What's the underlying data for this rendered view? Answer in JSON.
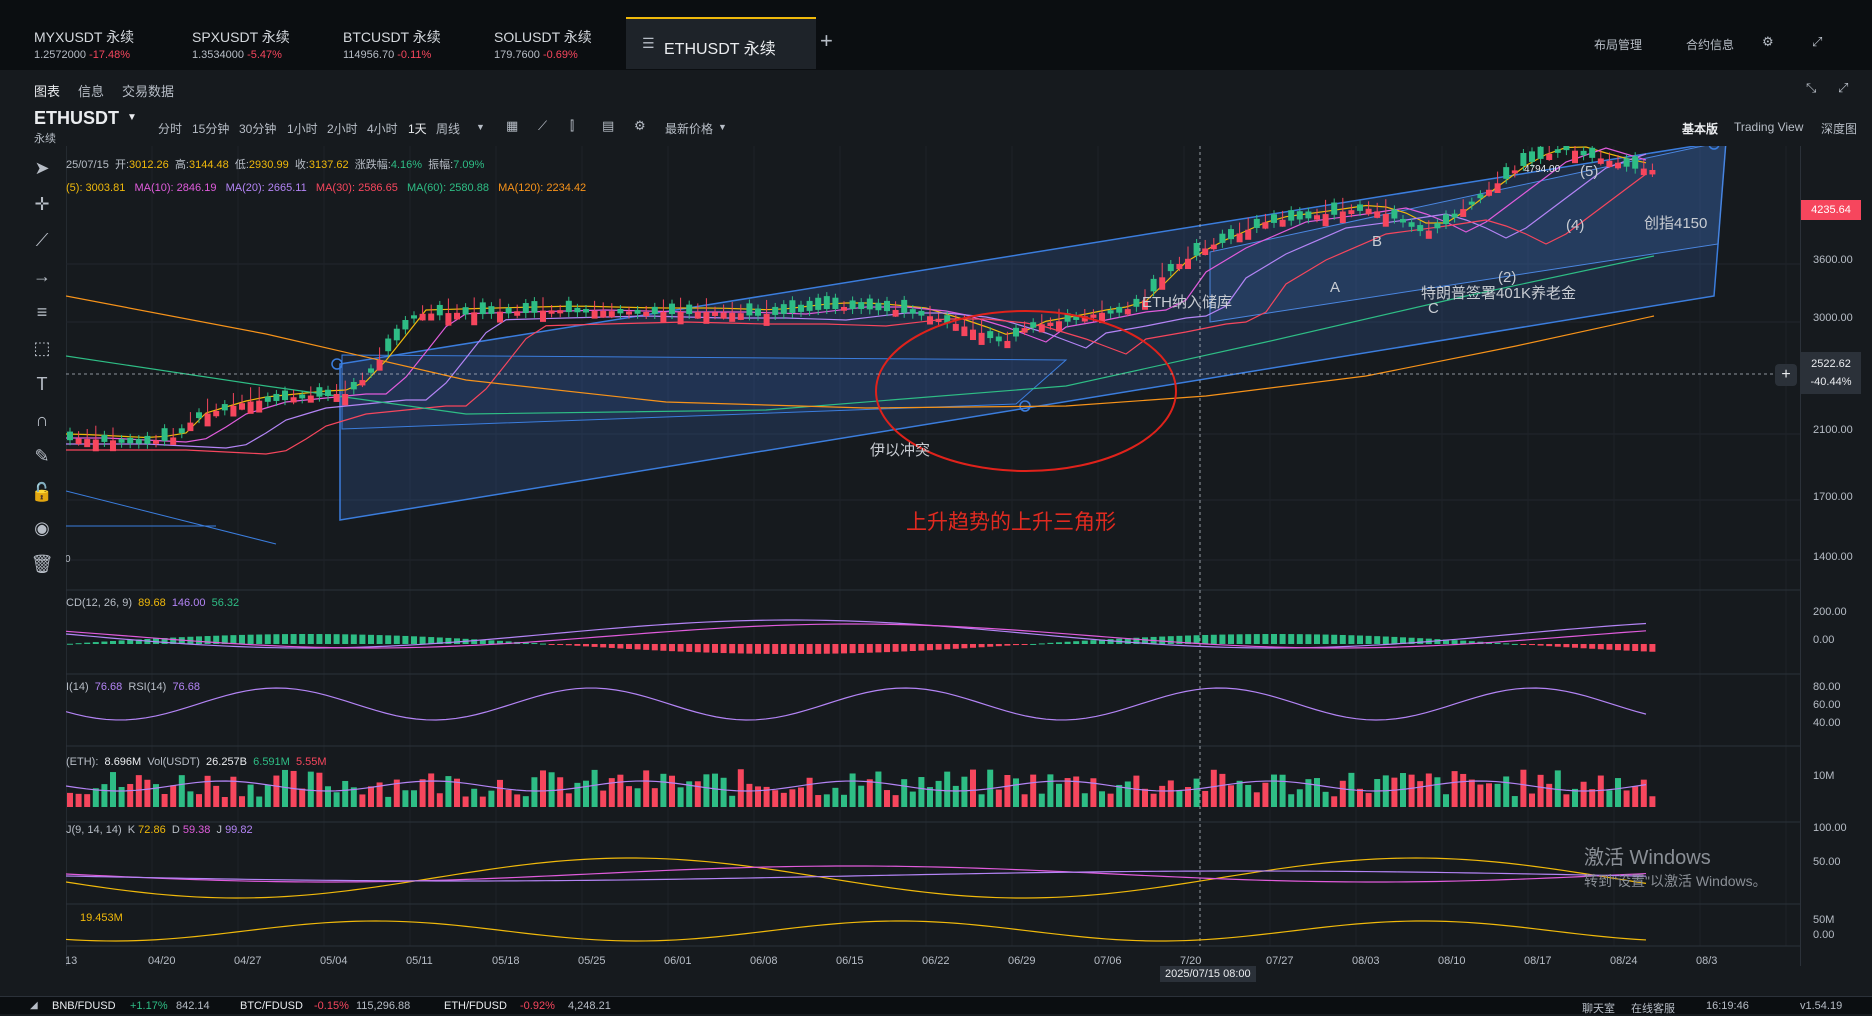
{
  "tickers": [
    {
      "name": "MYXUSDT 永续",
      "price": "1.2572000",
      "change": "-17.48%"
    },
    {
      "name": "SPXUSDT 永续",
      "price": "1.3534000",
      "change": "-5.47%"
    },
    {
      "name": "BTCUSDT 永续",
      "price": "114956.70",
      "change": "-0.11%"
    },
    {
      "name": "SOLUSDT 永续",
      "price": "179.7600",
      "change": "-0.69%"
    }
  ],
  "active_tab": "ETHUSDT 永续",
  "header_right": {
    "layout": "布局管理",
    "contract_info": "合约信息"
  },
  "subtabs": [
    "图表",
    "信息",
    "交易数据"
  ],
  "symbol": {
    "name": "ETHUSDT",
    "sub": "永续"
  },
  "intervals": [
    "分时",
    "15分钟",
    "30分钟",
    "1小时",
    "2小时",
    "4小时",
    "1天",
    "周线"
  ],
  "latest_price_menu": "最新价格",
  "view_modes": [
    "基本版",
    "Trading View",
    "深度图"
  ],
  "ohlc": {
    "date": "25/07/15",
    "open_label": "开:",
    "open": "3012.26",
    "high_label": "高:",
    "high": "3144.48",
    "low_label": "低:",
    "low": "2930.99",
    "close_label": "收:",
    "close": "3137.62",
    "chg_label": "涨跌幅:",
    "chg": "4.16%",
    "amp_label": "振幅:",
    "amp": "7.09%"
  },
  "ma": {
    "ma5": "(5): 3003.81",
    "ma10": "MA(10): 2846.19",
    "ma20": "MA(20): 2665.11",
    "ma30": "MA(30): 2586.65",
    "ma60": "MA(60): 2580.88",
    "ma120": "MA(120): 2234.42"
  },
  "macd": {
    "label": "CD(12, 26, 9)",
    "v1": "89.68",
    "v2": "146.00",
    "v3": "56.32"
  },
  "rsi": {
    "label": "I(14)",
    "v1": "76.68",
    "label2": "RSI(14)",
    "v2": "76.68"
  },
  "vol": {
    "label": "(ETH):",
    "v1": "8.696M",
    "label2": "Vol(USDT)",
    "v2": "26.257B",
    "v3": "6.591M",
    "v4": "5.55M"
  },
  "kdj": {
    "label": "J(9, 14, 14)",
    "k_label": "K",
    "k": "72.86",
    "d_label": "D",
    "d": "59.38",
    "j_label": "J",
    "j": "99.82"
  },
  "extra": {
    "v": "19.453M"
  },
  "price_axis": [
    "3600.00",
    "3000.00",
    "2100.00",
    "1700.00",
    "1400.00"
  ],
  "current_price": "4235.64",
  "cursor_price": "2522.62",
  "cursor_change": "-40.44%",
  "macd_axis": [
    "200.00",
    "0.00"
  ],
  "rsi_axis": [
    "80.00",
    "60.00",
    "40.00"
  ],
  "vol_axis": [
    "10M"
  ],
  "kdj_axis": [
    "100.00",
    "50.00"
  ],
  "extra_axis": [
    "50M",
    "0.00"
  ],
  "dates": [
    "/13",
    "04/20",
    "04/27",
    "05/04",
    "05/11",
    "05/18",
    "05/25",
    "06/01",
    "06/08",
    "06/15",
    "06/22",
    "06/29",
    "07/06",
    "7/20",
    "07/27",
    "08/03",
    "08/10",
    "08/17",
    "08/24",
    "08/3"
  ],
  "cursor_date": "2025/07/15 08:00",
  "annotations": {
    "title": "上升趋势的上升三角形",
    "conflict": "伊以冲突",
    "nasdaq": "ETH纳入储库",
    "trump": "特朗普签署401K养老金",
    "high": "4794.00",
    "record": "创指4150",
    "w5": "(5)",
    "w4": "(4)",
    "w2": "(2)",
    "a": "A",
    "b": "B",
    "c": "C",
    "zero": "0"
  },
  "windows_watermark": {
    "line1": "激活 Windows",
    "line2": "转到\"设置\"以激活 Windows。"
  },
  "bottom": [
    {
      "pair": "BNB/FDUSD",
      "chg": "+1.17%",
      "price": "842.14"
    },
    {
      "pair": "BTC/FDUSD",
      "chg": "-0.15%",
      "price": "115,296.88"
    },
    {
      "pair": "ETH/FDUSD",
      "chg": "-0.92%",
      "price": "4,248.21"
    }
  ],
  "bottom_right": {
    "chat": "聊天室",
    "support": "在线客服",
    "time": "16:19:46",
    "version": "v1.54.19"
  }
}
